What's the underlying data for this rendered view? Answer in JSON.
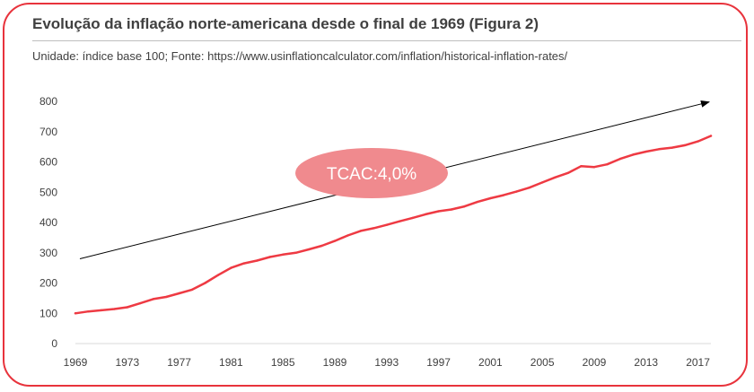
{
  "header": {
    "title": "Evolução da inflação norte-americana desde o final de 1969 (Figura 2)",
    "subtitle": "Unidade: índice base 100; Fonte: https://www.usinflationcalculator.com/inflation/historical-inflation-rates/"
  },
  "colors": {
    "frame": "#e8333c",
    "line": "#ee3a43",
    "ellipse": "#f08a8e",
    "arrow": "#000000"
  },
  "chart_data": {
    "type": "line",
    "title": "Evolução da inflação norte-americana desde o final de 1969 (Figura 2)",
    "subtitle": "Unidade: índice base 100; Fonte: https://www.usinflationcalculator.com/inflation/historical-inflation-rates/",
    "xlabel": "",
    "ylabel": "",
    "xlim": [
      1969,
      2018
    ],
    "ylim": [
      0,
      800
    ],
    "yticks": [
      0,
      100,
      200,
      300,
      400,
      500,
      600,
      700,
      800
    ],
    "xtick_labels": [
      "1969",
      "1973",
      "1977",
      "1981",
      "1985",
      "1989",
      "1993",
      "1997",
      "2001",
      "2005",
      "2009",
      "2013",
      "2017"
    ],
    "grid": false,
    "legend": "none",
    "series": [
      {
        "x": [
          1969,
          1970,
          1971,
          1972,
          1973,
          1974,
          1975,
          1976,
          1977,
          1978,
          1979,
          1980,
          1981,
          1982,
          1983,
          1984,
          1985,
          1986,
          1987,
          1988,
          1989,
          1990,
          1991,
          1992,
          1993,
          1994,
          1995,
          1996,
          1997,
          1998,
          1999,
          2000,
          2001,
          2002,
          2003,
          2004,
          2005,
          2006,
          2007,
          2008,
          2009,
          2010,
          2011,
          2012,
          2013,
          2014,
          2015,
          2016,
          2017,
          2018
        ],
        "values": [
          100,
          106,
          110,
          114,
          120,
          133,
          147,
          154,
          166,
          178,
          200,
          226,
          250,
          265,
          274,
          286,
          294,
          300,
          311,
          323,
          339,
          357,
          372,
          381,
          392,
          404,
          415,
          427,
          437,
          443,
          453,
          468,
          480,
          490,
          502,
          515,
          532,
          549,
          564,
          586,
          583,
          592,
          610,
          624,
          634,
          642,
          647,
          655,
          668,
          686
        ]
      }
    ],
    "annotations": [
      {
        "text": "TCAC:4,0%",
        "type": "ellipse-label"
      },
      {
        "type": "trend-arrow",
        "from": [
          1969,
          280
        ],
        "to": [
          2018,
          798
        ]
      }
    ]
  }
}
